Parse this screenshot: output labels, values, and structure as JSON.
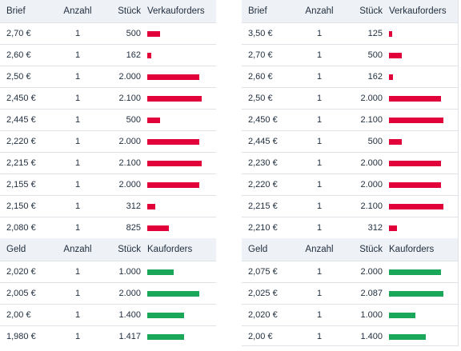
{
  "colors": {
    "sell": "#e2003b",
    "buy": "#1aa75a",
    "header_bg": "#eef1f5",
    "text": "#1f2d3d"
  },
  "left": {
    "ask_header": {
      "price": "Brief",
      "count": "Anzahl",
      "qty": "Stück",
      "orders": "Verkauforders"
    },
    "asks": [
      {
        "price": "2,70 €",
        "count": "1",
        "qty": "500",
        "share": 0.24
      },
      {
        "price": "2,60 €",
        "count": "1",
        "qty": "162",
        "share": 0.08
      },
      {
        "price": "2,50 €",
        "count": "1",
        "qty": "2.000",
        "share": 0.95
      },
      {
        "price": "2,450 €",
        "count": "1",
        "qty": "2.100",
        "share": 1.0
      },
      {
        "price": "2,445 €",
        "count": "1",
        "qty": "500",
        "share": 0.24
      },
      {
        "price": "2,220 €",
        "count": "1",
        "qty": "2.000",
        "share": 0.95
      },
      {
        "price": "2,215 €",
        "count": "1",
        "qty": "2.100",
        "share": 1.0
      },
      {
        "price": "2,155 €",
        "count": "1",
        "qty": "2.000",
        "share": 0.95
      },
      {
        "price": "2,150 €",
        "count": "1",
        "qty": "312",
        "share": 0.15
      },
      {
        "price": "2,080 €",
        "count": "1",
        "qty": "825",
        "share": 0.39
      }
    ],
    "bid_header": {
      "price": "Geld",
      "count": "Anzahl",
      "qty": "Stück",
      "orders": "Kauforders"
    },
    "bids": [
      {
        "price": "2,020 €",
        "count": "1",
        "qty": "1.000",
        "share": 0.48
      },
      {
        "price": "2,005 €",
        "count": "1",
        "qty": "2.000",
        "share": 0.95
      },
      {
        "price": "2,00 €",
        "count": "1",
        "qty": "1.400",
        "share": 0.67
      },
      {
        "price": "1,980 €",
        "count": "1",
        "qty": "1.417",
        "share": 0.67
      }
    ]
  },
  "right": {
    "ask_header": {
      "price": "Brief",
      "count": "Anzahl",
      "qty": "Stück",
      "orders": "Verkauforders"
    },
    "asks": [
      {
        "price": "3,50 €",
        "count": "1",
        "qty": "125",
        "share": 0.06
      },
      {
        "price": "2,70 €",
        "count": "1",
        "qty": "500",
        "share": 0.24
      },
      {
        "price": "2,60 €",
        "count": "1",
        "qty": "162",
        "share": 0.08
      },
      {
        "price": "2,50 €",
        "count": "1",
        "qty": "2.000",
        "share": 0.95
      },
      {
        "price": "2,450 €",
        "count": "1",
        "qty": "2.100",
        "share": 1.0
      },
      {
        "price": "2,445 €",
        "count": "1",
        "qty": "500",
        "share": 0.24
      },
      {
        "price": "2,230 €",
        "count": "1",
        "qty": "2.000",
        "share": 0.95
      },
      {
        "price": "2,220 €",
        "count": "1",
        "qty": "2.000",
        "share": 0.95
      },
      {
        "price": "2,215 €",
        "count": "1",
        "qty": "2.100",
        "share": 1.0
      },
      {
        "price": "2,210 €",
        "count": "1",
        "qty": "312",
        "share": 0.15
      }
    ],
    "bid_header": {
      "price": "Geld",
      "count": "Anzahl",
      "qty": "Stück",
      "orders": "Kauforders"
    },
    "bids": [
      {
        "price": "2,075 €",
        "count": "1",
        "qty": "2.000",
        "share": 0.95
      },
      {
        "price": "2,025 €",
        "count": "1",
        "qty": "2.087",
        "share": 1.0
      },
      {
        "price": "2,020 €",
        "count": "1",
        "qty": "1.000",
        "share": 0.48
      },
      {
        "price": "2,00 €",
        "count": "1",
        "qty": "1.400",
        "share": 0.67
      }
    ]
  }
}
